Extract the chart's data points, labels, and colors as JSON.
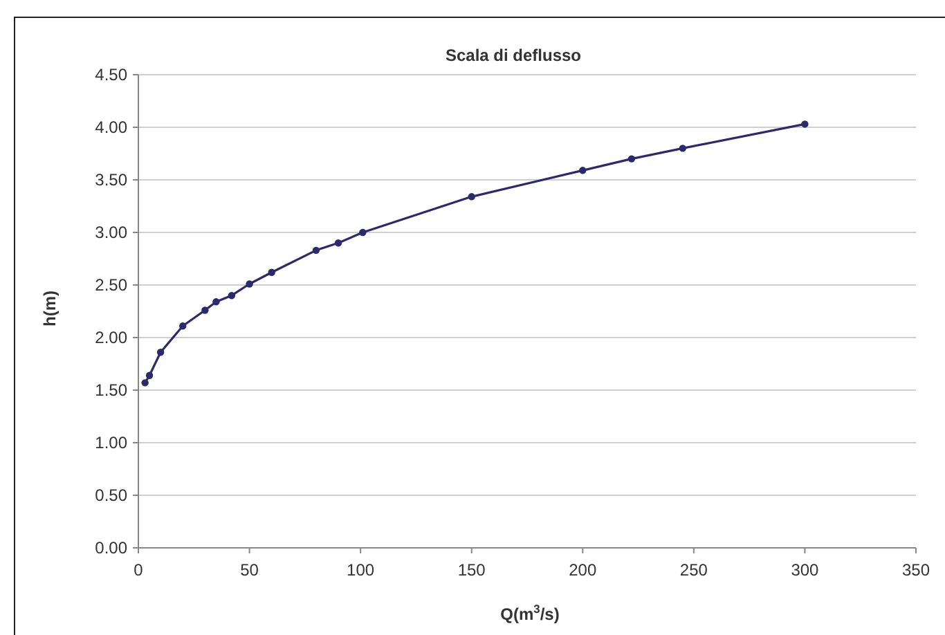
{
  "chart_data": {
    "type": "line",
    "title": "Scala di deflusso",
    "xlabel": "Q(m$^{3}$/s)",
    "ylabel": "h(m)",
    "series": [
      {
        "color": "#2b2b6b",
        "x": [
          3,
          5,
          10,
          20,
          30,
          35,
          42,
          50,
          60,
          80,
          90,
          101,
          150,
          200,
          222,
          245,
          300
        ],
        "values": [
          1.57,
          1.64,
          1.86,
          2.11,
          2.26,
          2.34,
          2.4,
          2.51,
          2.62,
          2.83,
          2.9,
          3.0,
          3.34,
          3.59,
          3.7,
          3.8,
          4.03
        ]
      }
    ],
    "xlim": [
      0,
      350
    ],
    "xticks": [
      0,
      50,
      100,
      150,
      200,
      250,
      300,
      350
    ],
    "ylim": [
      0,
      4.5
    ],
    "yticks": [
      {
        "value": 0,
        "label": "0.00"
      },
      {
        "value": 0.5,
        "label": "0.50"
      },
      {
        "value": 1,
        "label": "1.00"
      },
      {
        "value": 1.5,
        "label": "1.50"
      },
      {
        "value": 2,
        "label": "2.00"
      },
      {
        "value": 2.5,
        "label": "2.50"
      },
      {
        "value": 3,
        "label": "3.00"
      },
      {
        "value": 3.5,
        "label": "3.50"
      },
      {
        "value": 4,
        "label": "4.00"
      },
      {
        "value": 4.5,
        "label": "4.50"
      }
    ],
    "grid": "y",
    "marker": "circle",
    "line_style": "solid"
  }
}
